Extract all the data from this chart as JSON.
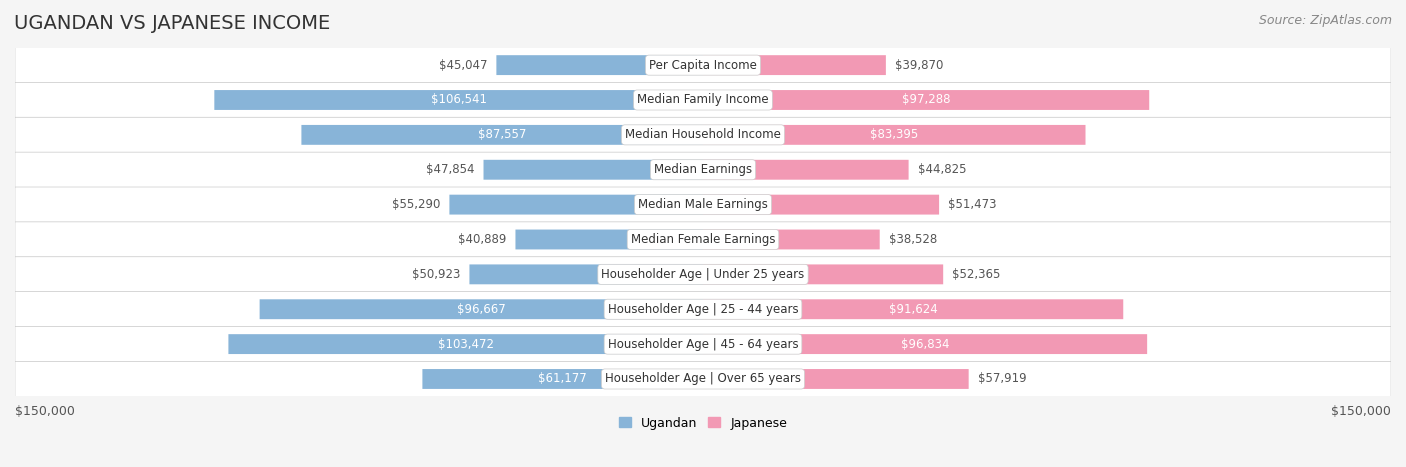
{
  "title": "UGANDAN VS JAPANESE INCOME",
  "source": "Source: ZipAtlas.com",
  "categories": [
    "Per Capita Income",
    "Median Family Income",
    "Median Household Income",
    "Median Earnings",
    "Median Male Earnings",
    "Median Female Earnings",
    "Householder Age | Under 25 years",
    "Householder Age | 25 - 44 years",
    "Householder Age | 45 - 64 years",
    "Householder Age | Over 65 years"
  ],
  "ugandan": [
    45047,
    106541,
    87557,
    47854,
    55290,
    40889,
    50923,
    96667,
    103472,
    61177
  ],
  "japanese": [
    39870,
    97288,
    83395,
    44825,
    51473,
    38528,
    52365,
    91624,
    96834,
    57919
  ],
  "ugandan_color": "#88b4d8",
  "japanese_color": "#f299b4",
  "ugandan_label_color_inside": "#ffffff",
  "japanese_label_color_inside": "#ffffff",
  "ugandan_label_color_outside": "#888888",
  "japanese_label_color_outside": "#888888",
  "max_value": 150000,
  "xlabel_left": "$150,000",
  "xlabel_right": "$150,000",
  "background_color": "#f5f5f5",
  "row_bg_color": "#ffffff",
  "row_alt_bg": "#f0f0f0",
  "title_fontsize": 14,
  "label_fontsize": 8.5,
  "category_fontsize": 8.5,
  "source_fontsize": 9
}
